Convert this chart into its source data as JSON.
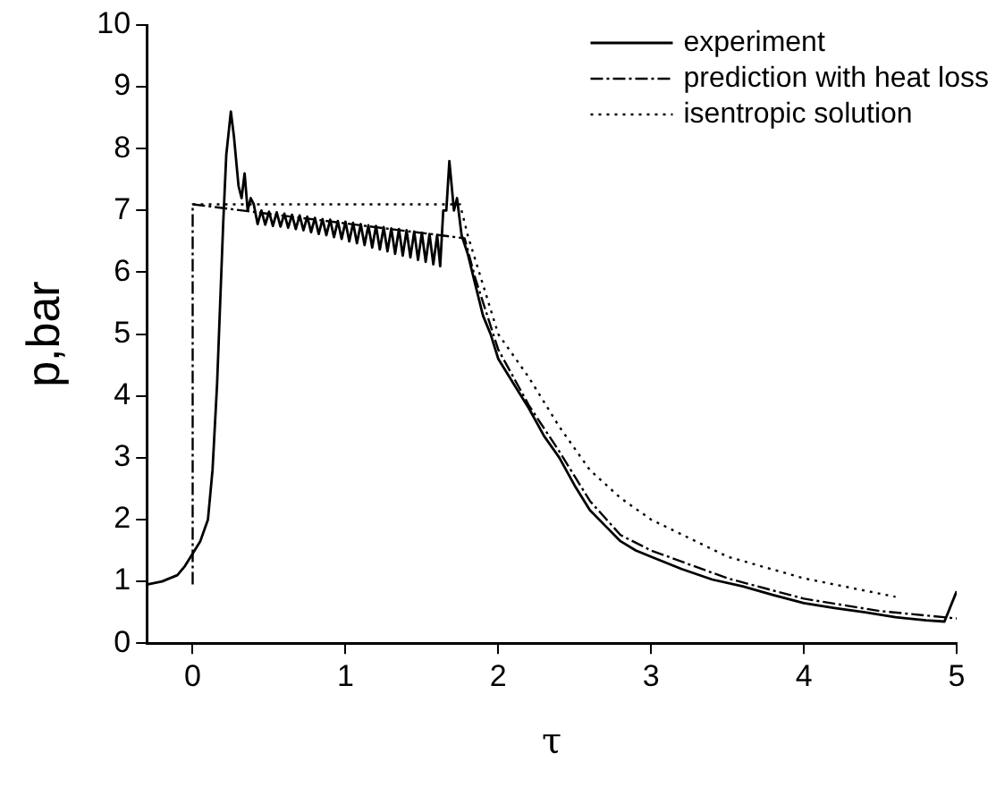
{
  "chart_data": {
    "type": "line",
    "xlabel": "τ",
    "ylabel": "p,bar",
    "xlim": [
      -0.3,
      5
    ],
    "xticks": [
      0,
      1,
      2,
      3,
      4,
      5
    ],
    "ylim": [
      0,
      10
    ],
    "yticks": [
      0,
      1,
      2,
      3,
      4,
      5,
      6,
      7,
      8,
      9,
      10
    ],
    "grid": false,
    "legend": "top right",
    "marker": "none",
    "series": [
      {
        "name": "experiment",
        "color": "#000000",
        "line_style": "solid",
        "x": [
          -0.3,
          -0.2,
          -0.1,
          -0.05,
          0,
          0.05,
          0.1,
          0.13,
          0.16,
          0.18,
          0.2,
          0.22,
          0.25,
          0.27,
          0.3,
          0.32,
          0.34,
          0.36,
          0.38,
          0.4,
          0.425,
          0.45,
          0.475,
          0.5,
          0.525,
          0.55,
          0.575,
          0.6,
          0.625,
          0.65,
          0.675,
          0.7,
          0.725,
          0.75,
          0.775,
          0.8,
          0.825,
          0.85,
          0.875,
          0.9,
          0.925,
          0.95,
          0.975,
          1.0,
          1.025,
          1.05,
          1.075,
          1.1,
          1.125,
          1.15,
          1.175,
          1.2,
          1.225,
          1.25,
          1.275,
          1.3,
          1.325,
          1.35,
          1.375,
          1.4,
          1.425,
          1.45,
          1.475,
          1.5,
          1.525,
          1.55,
          1.575,
          1.6,
          1.62,
          1.64,
          1.66,
          1.68,
          1.71,
          1.73,
          1.76,
          1.8,
          1.85,
          1.9,
          1.95,
          2.0,
          2.1,
          2.2,
          2.3,
          2.4,
          2.5,
          2.6,
          2.7,
          2.8,
          2.9,
          3.0,
          3.2,
          3.4,
          3.6,
          3.8,
          4.0,
          4.2,
          4.4,
          4.6,
          4.8,
          4.92,
          5.0
        ],
        "values": [
          0.95,
          1.0,
          1.1,
          1.25,
          1.45,
          1.65,
          2.0,
          2.8,
          4.2,
          5.5,
          6.8,
          7.9,
          8.6,
          8.2,
          7.4,
          7.2,
          7.6,
          7.0,
          7.2,
          7.1,
          6.78,
          7.0,
          6.77,
          6.98,
          6.75,
          6.97,
          6.74,
          6.95,
          6.72,
          6.93,
          6.7,
          6.92,
          6.68,
          6.9,
          6.65,
          6.88,
          6.62,
          6.86,
          6.6,
          6.85,
          6.57,
          6.83,
          6.54,
          6.82,
          6.5,
          6.8,
          6.47,
          6.78,
          6.44,
          6.76,
          6.4,
          6.75,
          6.37,
          6.73,
          6.34,
          6.71,
          6.3,
          6.7,
          6.27,
          6.68,
          6.24,
          6.66,
          6.2,
          6.64,
          6.17,
          6.62,
          6.13,
          6.6,
          6.1,
          7.0,
          7.0,
          7.8,
          7.0,
          7.2,
          6.6,
          6.3,
          5.8,
          5.3,
          5.0,
          4.6,
          4.2,
          3.8,
          3.35,
          3.0,
          2.55,
          2.15,
          1.9,
          1.65,
          1.5,
          1.4,
          1.2,
          1.03,
          0.92,
          0.78,
          0.65,
          0.57,
          0.5,
          0.42,
          0.37,
          0.35,
          0.84
        ]
      },
      {
        "name": "prediction with heat loss",
        "color": "#000000",
        "line_style": "dashed",
        "x": [
          0,
          0,
          1.78,
          1.85,
          2.0,
          2.2,
          2.4,
          2.6,
          2.8,
          3.0,
          3.5,
          4.0,
          4.5,
          5.0
        ],
        "values": [
          0.95,
          7.1,
          6.55,
          5.9,
          4.75,
          3.85,
          3.1,
          2.3,
          1.75,
          1.5,
          1.05,
          0.72,
          0.52,
          0.4
        ]
      },
      {
        "name": "isentropic solution",
        "color": "#000000",
        "line_style": "dotted",
        "x": [
          0,
          1.75,
          1.8,
          2.0,
          2.2,
          2.4,
          2.6,
          2.8,
          3.0,
          3.5,
          4.0,
          4.5,
          4.6
        ],
        "values": [
          7.1,
          7.1,
          6.6,
          5.0,
          4.3,
          3.5,
          2.8,
          2.35,
          2.0,
          1.4,
          1.05,
          0.8,
          0.75
        ]
      }
    ]
  }
}
